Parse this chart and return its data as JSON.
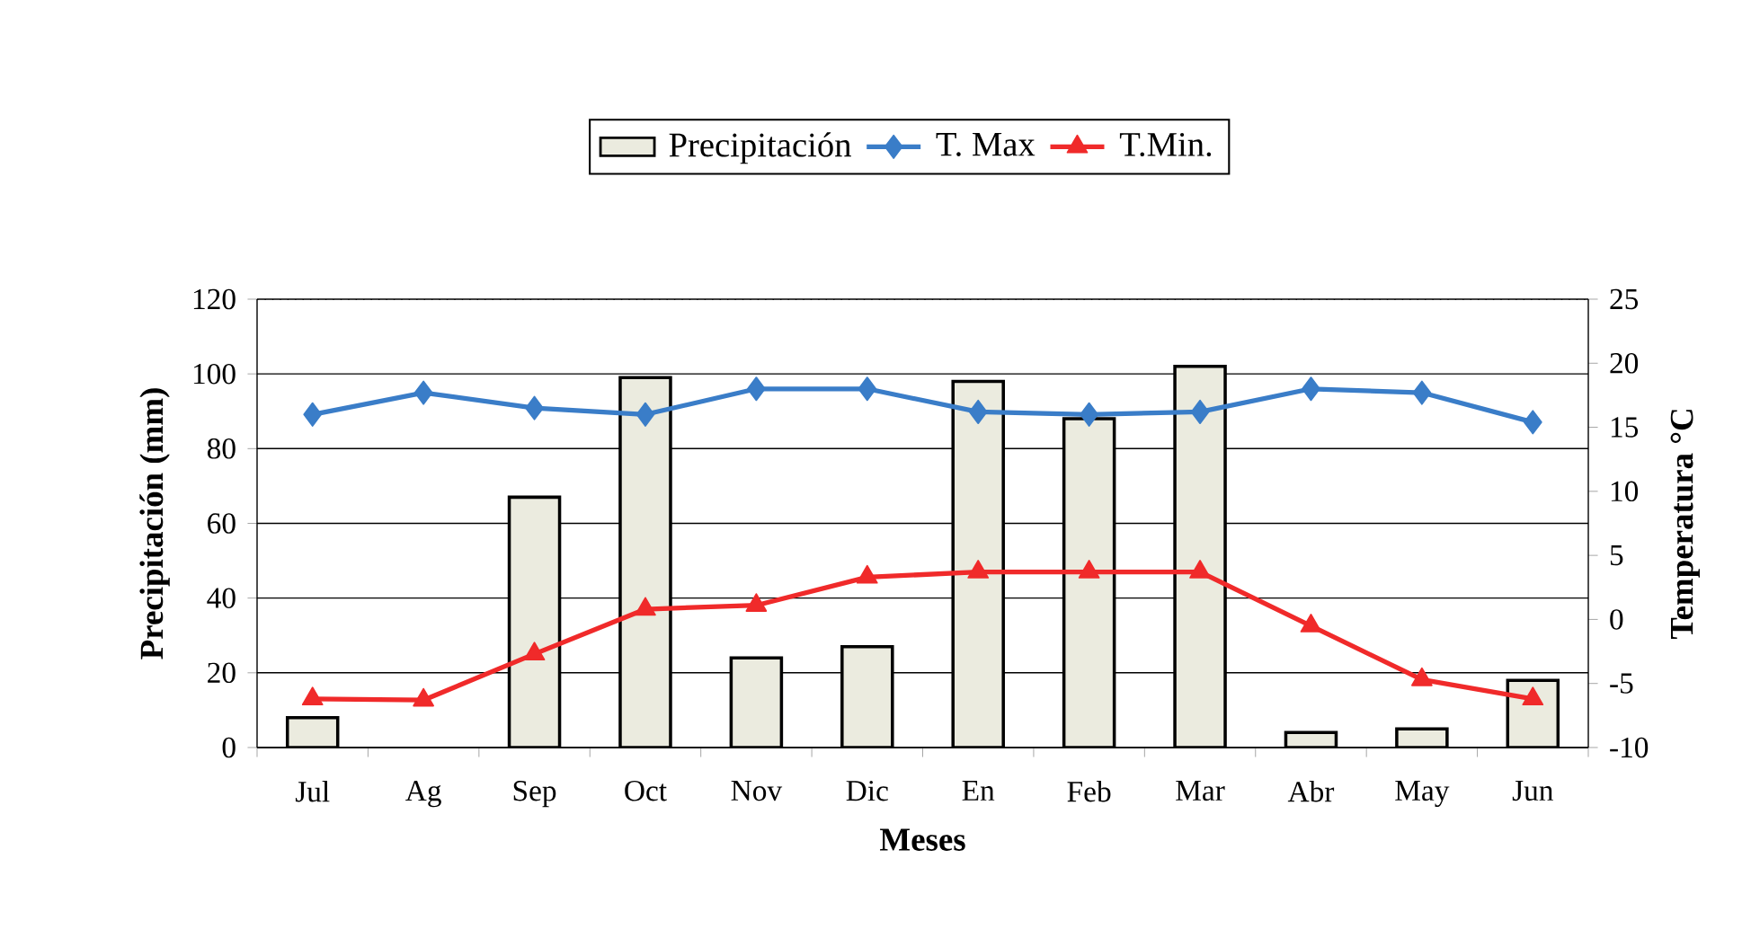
{
  "chart_data": {
    "type": "bar",
    "xlabel": "Meses",
    "ylabel": "Precipitación (mm)",
    "y2label": "Temperatura °C",
    "categories": [
      "Jul",
      "Ag",
      "Sep",
      "Oct",
      "Nov",
      "Dic",
      "En",
      "Feb",
      "Mar",
      "Abr",
      "May",
      "Jun"
    ],
    "series": [
      {
        "name": "Precipitación",
        "color": "#ebebdf",
        "values": [
          8,
          null,
          67,
          99,
          24,
          27,
          98,
          88,
          102,
          4,
          5,
          18
        ]
      },
      {
        "name": "T. Max",
        "type": "line",
        "axis": "y2",
        "marker": "diamond",
        "color": "#3a7dc8",
        "values": [
          16.0,
          17.7,
          16.5,
          16.0,
          18.0,
          18.0,
          16.2,
          16.0,
          16.2,
          18.0,
          17.7,
          15.4
        ]
      },
      {
        "name": "T.Min.",
        "type": "line",
        "axis": "y2",
        "marker": "triangle",
        "color": "#f02a2a",
        "values": [
          -6.2,
          -6.3,
          -2.7,
          0.8,
          1.1,
          3.3,
          3.7,
          3.7,
          3.7,
          -0.5,
          -4.7,
          -6.2
        ]
      }
    ],
    "ylim": [
      0,
      120
    ],
    "yticks": [
      0,
      20,
      40,
      60,
      80,
      100,
      120
    ],
    "y2lim": [
      -10,
      25
    ],
    "y2ticks": [
      -10,
      -5,
      0,
      5,
      10,
      15,
      20,
      25
    ],
    "grid": "y",
    "legend": "top"
  }
}
